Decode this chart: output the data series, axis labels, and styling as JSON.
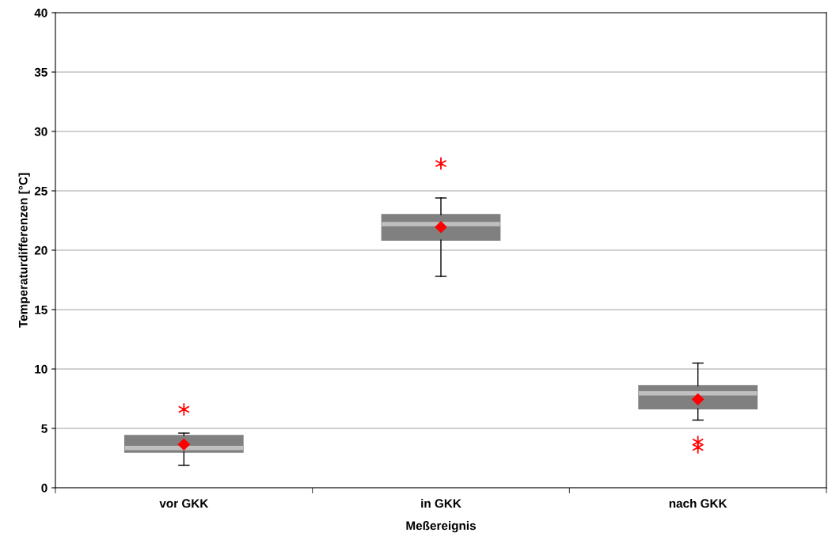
{
  "chart_data": {
    "type": "box",
    "xlabel": "Meßereignis",
    "ylabel": "Temperaturdifferenzen [°C]",
    "categories": [
      "vor GKK",
      "in GKK",
      "nach GKK"
    ],
    "boxes": [
      {
        "low": 1.9,
        "q1": 3.0,
        "median": 3.35,
        "q3": 4.4,
        "high": 4.6,
        "mean": 3.65,
        "outliers": [
          6.6
        ]
      },
      {
        "low": 17.8,
        "q1": 20.85,
        "median": 22.2,
        "q3": 23.0,
        "high": 24.4,
        "mean": 21.95,
        "outliers": [
          27.3
        ]
      },
      {
        "low": 5.7,
        "q1": 6.65,
        "median": 7.95,
        "q3": 8.6,
        "high": 10.5,
        "mean": 7.45,
        "outliers": [
          3.85,
          3.4
        ]
      }
    ],
    "color": "#808080",
    "ylim": [
      0,
      40
    ],
    "yticks": [
      0,
      5,
      10,
      15,
      20,
      25,
      30,
      35,
      40
    ],
    "grid": "y",
    "legend": false
  }
}
